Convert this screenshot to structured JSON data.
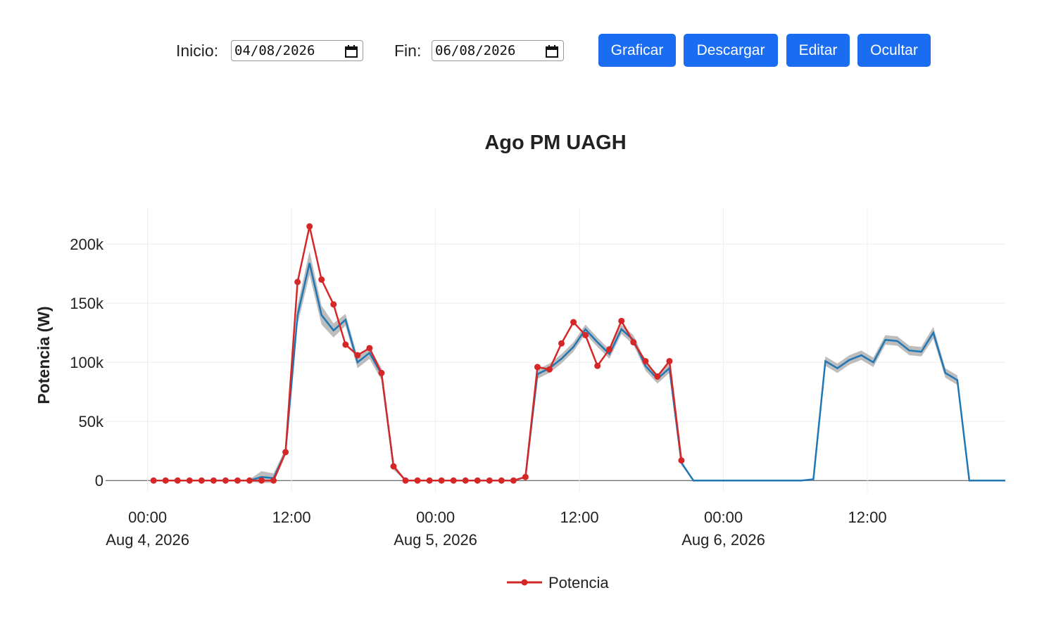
{
  "controls": {
    "start_label": "Inicio:",
    "start_value": "04/08/2026",
    "end_label": "Fin:",
    "end_value": "06/08/2026",
    "buttons": [
      "Graficar",
      "Descargar",
      "Editar",
      "Ocultar"
    ]
  },
  "chart_data": {
    "type": "line",
    "title": "Ago PM UAGH",
    "y_label": "Potencia (W)",
    "grid": true,
    "legend": "bottom",
    "x": [
      "2026-08-04 00:30",
      "2026-08-04 01:30",
      "2026-08-04 02:30",
      "2026-08-04 03:30",
      "2026-08-04 04:30",
      "2026-08-04 05:30",
      "2026-08-04 06:30",
      "2026-08-04 07:30",
      "2026-08-04 08:30",
      "2026-08-04 09:30",
      "2026-08-04 10:30",
      "2026-08-04 11:30",
      "2026-08-04 12:30",
      "2026-08-04 13:30",
      "2026-08-04 14:30",
      "2026-08-04 15:30",
      "2026-08-04 16:30",
      "2026-08-04 17:30",
      "2026-08-04 18:30",
      "2026-08-04 19:30",
      "2026-08-04 20:30",
      "2026-08-04 21:30",
      "2026-08-04 22:30",
      "2026-08-04 23:30",
      "2026-08-05 00:30",
      "2026-08-05 01:30",
      "2026-08-05 02:30",
      "2026-08-05 03:30",
      "2026-08-05 04:30",
      "2026-08-05 05:30",
      "2026-08-05 06:30",
      "2026-08-05 07:30",
      "2026-08-05 08:30",
      "2026-08-05 09:30",
      "2026-08-05 10:30",
      "2026-08-05 11:30",
      "2026-08-05 12:30",
      "2026-08-05 13:30",
      "2026-08-05 14:30",
      "2026-08-05 15:30",
      "2026-08-05 16:30",
      "2026-08-05 17:30",
      "2026-08-05 18:30",
      "2026-08-05 19:30",
      "2026-08-05 20:30",
      "2026-08-05 21:30",
      "2026-08-05 22:30",
      "2026-08-05 23:30",
      "2026-08-06 00:30",
      "2026-08-06 01:30",
      "2026-08-06 02:30",
      "2026-08-06 03:30",
      "2026-08-06 04:30",
      "2026-08-06 05:30",
      "2026-08-06 06:30",
      "2026-08-06 07:30",
      "2026-08-06 08:30",
      "2026-08-06 09:30",
      "2026-08-06 10:30",
      "2026-08-06 11:30",
      "2026-08-06 12:30",
      "2026-08-06 13:30",
      "2026-08-06 14:30",
      "2026-08-06 15:30",
      "2026-08-06 16:30",
      "2026-08-06 17:30",
      "2026-08-06 18:30",
      "2026-08-06 19:30",
      "2026-08-06 20:30",
      "2026-08-06 21:30",
      "2026-08-06 22:30",
      "2026-08-06 23:30"
    ],
    "series": [
      {
        "color": "#1f77b4",
        "band_color": "#bdbdbd",
        "values": [
          0,
          0,
          0,
          0,
          0,
          0,
          0,
          0,
          0,
          3000,
          2000,
          24000,
          140000,
          184000,
          140000,
          127000,
          136000,
          100000,
          108000,
          90000,
          12000,
          0,
          0,
          0,
          0,
          0,
          0,
          0,
          0,
          0,
          0,
          3000,
          90000,
          95000,
          103000,
          113000,
          128000,
          117000,
          107000,
          128000,
          119000,
          97000,
          86000,
          95000,
          15000,
          0,
          0,
          0,
          0,
          0,
          0,
          0,
          0,
          0,
          0,
          1000,
          101000,
          95000,
          102000,
          106000,
          100000,
          119000,
          118000,
          110000,
          109000,
          125000,
          91000,
          85000,
          0,
          0,
          0,
          0
        ],
        "errors": [
          0,
          0,
          0,
          0,
          0,
          0,
          0,
          0,
          1000,
          5000,
          4000,
          3000,
          8000,
          10000,
          8000,
          6000,
          5000,
          5000,
          5000,
          5000,
          3000,
          0,
          0,
          0,
          0,
          0,
          0,
          0,
          0,
          0,
          0,
          1000,
          4000,
          4000,
          4000,
          4000,
          4000,
          4000,
          4000,
          4000,
          4000,
          4000,
          4000,
          4000,
          2000,
          0,
          0,
          0,
          0,
          0,
          0,
          0,
          0,
          0,
          0,
          1000,
          4000,
          4000,
          4000,
          4000,
          4000,
          4000,
          4000,
          4000,
          4000,
          5000,
          4000,
          4000,
          0,
          0,
          0,
          0
        ]
      },
      {
        "name": "Potencia",
        "color": "#d62728",
        "markers": true,
        "values": [
          0,
          0,
          0,
          0,
          0,
          0,
          0,
          0,
          0,
          0,
          0,
          24000,
          168000,
          215000,
          170000,
          149000,
          115000,
          106000,
          112000,
          91000,
          12000,
          0,
          0,
          0,
          0,
          0,
          0,
          0,
          0,
          0,
          0,
          3000,
          96000,
          94000,
          116000,
          134000,
          123000,
          97000,
          111000,
          135000,
          117000,
          101000,
          88000,
          101000,
          17000,
          null,
          null,
          null,
          null,
          null,
          null,
          null,
          null,
          null,
          null,
          null,
          null,
          null,
          null,
          null,
          null,
          null,
          null,
          null,
          null,
          null,
          null,
          null,
          null,
          null,
          null,
          null
        ]
      }
    ],
    "xlim": [
      "2026-08-03 20:30",
      "2026-08-06 23:30"
    ],
    "xticks": [
      {
        "value": "2026-08-04 00:00",
        "label": "00:00\nAug 4, 2026"
      },
      {
        "value": "2026-08-04 12:00",
        "label": "12:00"
      },
      {
        "value": "2026-08-05 00:00",
        "label": "00:00\nAug 5, 2026"
      },
      {
        "value": "2026-08-05 12:00",
        "label": "12:00"
      },
      {
        "value": "2026-08-06 00:00",
        "label": "00:00\nAug 6, 2026"
      },
      {
        "value": "2026-08-06 12:00",
        "label": "12:00"
      }
    ],
    "ylim": [
      -10000,
      231000
    ],
    "yticks": [
      0,
      {
        "value": 50000,
        "label": "50k"
      },
      {
        "value": 100000,
        "label": "100k"
      },
      {
        "value": 150000,
        "label": "150k"
      },
      {
        "value": 200000,
        "label": "200k"
      }
    ]
  }
}
